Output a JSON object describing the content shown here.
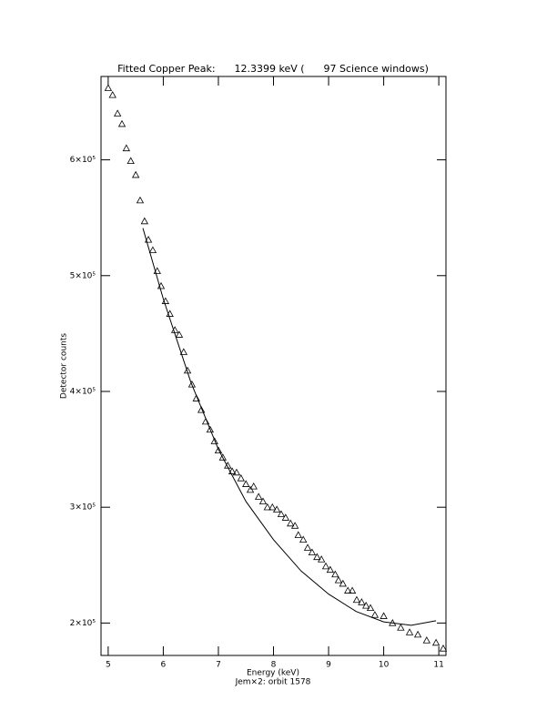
{
  "chart_data": {
    "type": "scatter",
    "title": "Fitted Copper Peak:      12.3399 keV (      97 Science windows)",
    "xlabel": "Energy (keV)",
    "subtitle": "Jem×2: orbit 1578",
    "ylabel": "Detector counts",
    "xlim": [
      4.87,
      11.13
    ],
    "ylim": [
      172000,
      672000
    ],
    "xticks": [
      5,
      6,
      7,
      8,
      9,
      10,
      11
    ],
    "yticks": [
      {
        "value": 200000,
        "label": "2×10⁵"
      },
      {
        "value": 300000,
        "label": "3×10⁵"
      },
      {
        "value": 400000,
        "label": "4×10⁵"
      },
      {
        "value": 500000,
        "label": "5×10⁵"
      },
      {
        "value": 600000,
        "label": "6×10⁵"
      }
    ],
    "series": [
      {
        "type": "scatter",
        "marker": "triangle",
        "color": "#000000",
        "x": [
          5.0,
          5.08,
          5.17,
          5.25,
          5.33,
          5.41,
          5.5,
          5.58,
          5.66,
          5.73,
          5.81,
          5.89,
          5.96,
          6.04,
          6.12,
          6.21,
          6.29,
          6.37,
          6.44,
          6.52,
          6.6,
          6.69,
          6.77,
          6.85,
          6.93,
          7.0,
          7.08,
          7.17,
          7.25,
          7.33,
          7.41,
          7.5,
          7.58,
          7.64,
          7.73,
          7.81,
          7.89,
          7.98,
          8.06,
          8.14,
          8.22,
          8.31,
          8.39,
          8.45,
          8.54,
          8.62,
          8.7,
          8.79,
          8.87,
          8.95,
          9.03,
          9.12,
          9.18,
          9.26,
          9.35,
          9.43,
          9.51,
          9.6,
          9.68,
          9.76,
          9.84,
          10.0,
          10.16,
          10.31,
          10.47,
          10.62,
          10.78,
          10.95,
          11.08
        ],
        "values": [
          662000,
          656000,
          640000,
          631000,
          610000,
          599000,
          587000,
          565000,
          547000,
          531000,
          522000,
          504000,
          491000,
          478000,
          467000,
          453000,
          449000,
          434000,
          418000,
          406000,
          394000,
          384000,
          374000,
          367000,
          357000,
          349000,
          343000,
          336000,
          331000,
          330000,
          325000,
          320000,
          315000,
          318000,
          309000,
          305000,
          300000,
          300000,
          298000,
          294000,
          291000,
          286000,
          284000,
          276000,
          272000,
          265000,
          261000,
          257000,
          255000,
          249000,
          246000,
          242000,
          237000,
          234000,
          228000,
          228000,
          220000,
          218000,
          215000,
          213000,
          207000,
          206000,
          200000,
          196000,
          192000,
          190000,
          185000,
          183000,
          178000
        ]
      },
      {
        "type": "line",
        "color": "#000000",
        "x": [
          5.63,
          6.0,
          6.5,
          7.0,
          7.5,
          8.0,
          8.5,
          9.0,
          9.5,
          10.0,
          10.5,
          10.95
        ],
        "values": [
          541000,
          480000,
          408000,
          350000,
          305000,
          272000,
          245000,
          225000,
          210000,
          201000,
          198000,
          202000
        ]
      }
    ]
  }
}
